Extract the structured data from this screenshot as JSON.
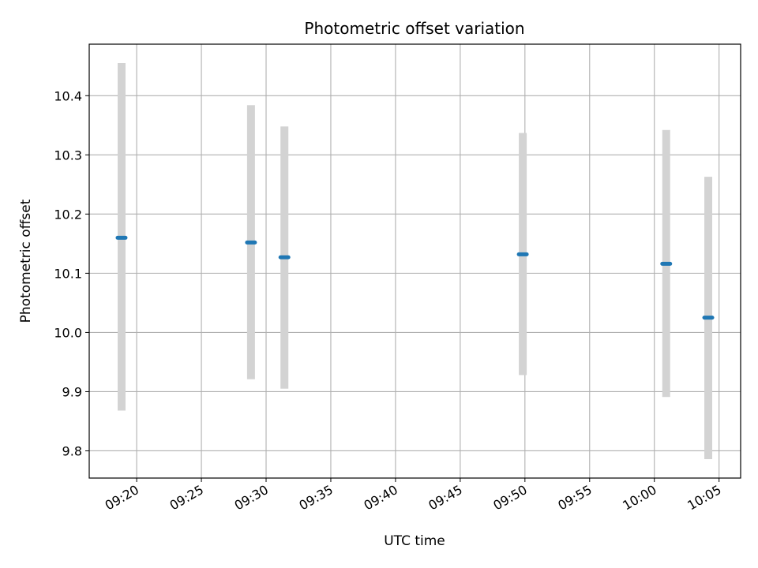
{
  "chart_data": {
    "type": "scatter",
    "title": "Photometric offset variation",
    "xlabel": "UTC time",
    "ylabel": "Photometric offset",
    "x_ticks": [
      "09:20",
      "09:25",
      "09:30",
      "09:35",
      "09:40",
      "09:45",
      "09:50",
      "09:55",
      "10:00",
      "10:05"
    ],
    "y_ticks": [
      "9.8",
      "9.9",
      "10.0",
      "10.1",
      "10.2",
      "10.3",
      "10.4"
    ],
    "xlim": [
      "09:16:20",
      "10:06:40"
    ],
    "ylim": [
      9.754,
      10.487
    ],
    "grid": true,
    "points": [
      {
        "x": "09:18:50",
        "y": 10.16,
        "y_low": 9.868,
        "y_high": 10.455
      },
      {
        "x": "09:28:50",
        "y": 10.152,
        "y_low": 9.921,
        "y_high": 10.384
      },
      {
        "x": "09:31:25",
        "y": 10.127,
        "y_low": 9.905,
        "y_high": 10.348
      },
      {
        "x": "09:49:50",
        "y": 10.132,
        "y_low": 9.928,
        "y_high": 10.337
      },
      {
        "x": "10:00:55",
        "y": 10.116,
        "y_low": 9.891,
        "y_high": 10.342
      },
      {
        "x": "10:04:10",
        "y": 10.025,
        "y_low": 9.786,
        "y_high": 10.263
      }
    ],
    "colors": {
      "marker": "#1f77b4",
      "errorbar": "#d3d3d3",
      "grid": "#b0b0b0"
    }
  }
}
